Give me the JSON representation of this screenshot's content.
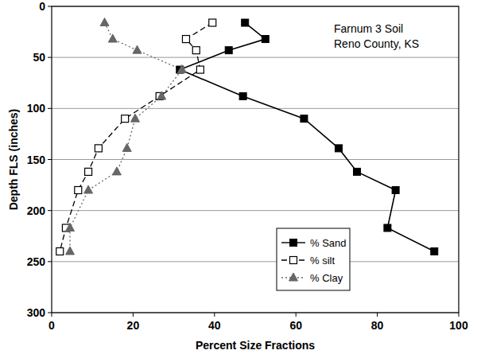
{
  "chart_data": {
    "type": "line",
    "x_label": "Percent Size Fractions",
    "y_label": "Depth FLS (inches)",
    "annotations": [
      "Farnum 3 Soil",
      "Reno County, KS"
    ],
    "xlim": [
      0,
      100
    ],
    "xticks": [
      0,
      20,
      40,
      60,
      80,
      100
    ],
    "ylim": [
      0,
      300
    ],
    "yticks": [
      0,
      50,
      100,
      150,
      200,
      250,
      300
    ],
    "grid": true,
    "legend": "lower right",
    "series": [
      {
        "name": "% Sand",
        "color": "#000000",
        "marker": "square",
        "line_style": "solid",
        "x": [
          47.5,
          52.5,
          43.5,
          31.5,
          47,
          62,
          70.5,
          75,
          84.5,
          82.5,
          94
        ],
        "values": [
          16,
          32,
          43,
          62,
          88,
          110,
          139,
          162,
          180,
          217,
          240
        ]
      },
      {
        "name": "% silt",
        "color": "#000000",
        "marker": "square-open",
        "line_style": "dashed",
        "x": [
          39.5,
          33,
          35.5,
          36.5,
          26.5,
          18,
          11.5,
          9,
          6.5,
          3.5,
          2
        ],
        "values": [
          16,
          32,
          43,
          62,
          88,
          110,
          139,
          162,
          180,
          217,
          240
        ]
      },
      {
        "name": "% Clay",
        "color": "#666666",
        "marker": "triangle",
        "line_style": "dotted",
        "x": [
          13,
          15,
          21,
          32,
          27,
          20.5,
          18.5,
          16,
          9,
          4.5,
          4.5
        ],
        "values": [
          16,
          32,
          43,
          62,
          88,
          110,
          139,
          162,
          180,
          217,
          240
        ]
      }
    ]
  }
}
